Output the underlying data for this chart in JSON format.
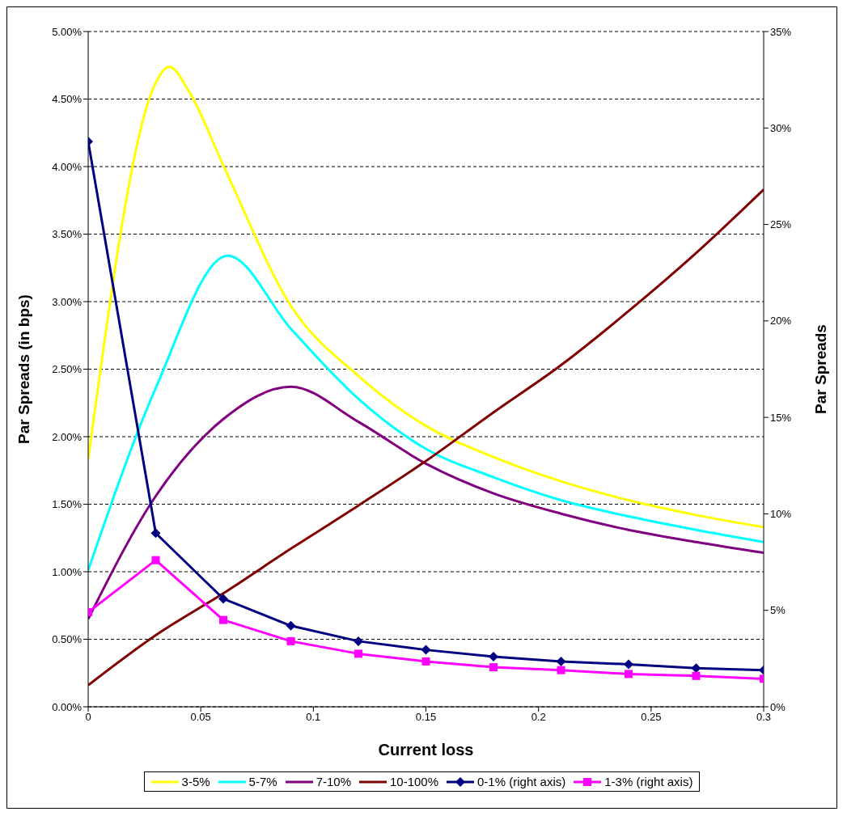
{
  "chart_data": {
    "type": "line",
    "xlabel": "Current loss",
    "ylabel": "Par Spreads (in bps)",
    "y2label": "Par Spreads",
    "xlim": [
      0,
      0.3
    ],
    "xticks": [
      0,
      0.05,
      0.1,
      0.15,
      0.2,
      0.25,
      0.3
    ],
    "ylim": [
      0,
      5
    ],
    "yticks": [
      {
        "value": 0,
        "label": "0.00%"
      },
      {
        "value": 0.5,
        "label": "0.50%"
      },
      {
        "value": 1,
        "label": "1.00%"
      },
      {
        "value": 1.5,
        "label": "1.50%"
      },
      {
        "value": 2,
        "label": "2.00%"
      },
      {
        "value": 2.5,
        "label": "2.50%"
      },
      {
        "value": 3,
        "label": "3.00%"
      },
      {
        "value": 3.5,
        "label": "3.50%"
      },
      {
        "value": 4,
        "label": "4.00%"
      },
      {
        "value": 4.5,
        "label": "4.50%"
      },
      {
        "value": 5,
        "label": "5.00%"
      }
    ],
    "y2lim": [
      0,
      35
    ],
    "y2ticks": [
      {
        "value": 0,
        "label": "0%"
      },
      {
        "value": 5,
        "label": "5%"
      },
      {
        "value": 10,
        "label": "10%"
      },
      {
        "value": 15,
        "label": "15%"
      },
      {
        "value": 20,
        "label": "20%"
      },
      {
        "value": 25,
        "label": "25%"
      },
      {
        "value": 30,
        "label": "30%"
      },
      {
        "value": 35,
        "label": "35%"
      }
    ],
    "grid": "y",
    "legend": "bottom",
    "marker": "none",
    "line_style": "solid",
    "series": [
      {
        "name": "3-5%",
        "color": "#ffff00",
        "x": [
          0,
          0.03,
          0.036,
          0.045,
          0.06,
          0.09,
          0.12,
          0.15,
          0.18,
          0.21,
          0.24,
          0.27,
          0.3
        ],
        "values": [
          1.83,
          4.62,
          4.74,
          4.55,
          4.01,
          2.97,
          2.45,
          2.08,
          1.85,
          1.67,
          1.53,
          1.42,
          1.33
        ]
      },
      {
        "name": "5-7%",
        "color": "#00ffff",
        "x": [
          0,
          0.03,
          0.062,
          0.09,
          0.12,
          0.15,
          0.18,
          0.21,
          0.24,
          0.27,
          0.3
        ],
        "values": [
          1.01,
          2.36,
          3.34,
          2.8,
          2.28,
          1.91,
          1.7,
          1.53,
          1.41,
          1.31,
          1.22
        ]
      },
      {
        "name": "7-10%",
        "color": "#800080",
        "x": [
          0,
          0.03,
          0.06,
          0.09,
          0.12,
          0.15,
          0.18,
          0.21,
          0.24,
          0.27,
          0.3
        ],
        "values": [
          0.65,
          1.56,
          2.13,
          2.37,
          2.11,
          1.8,
          1.58,
          1.43,
          1.31,
          1.22,
          1.14
        ]
      },
      {
        "name": "10-100%",
        "color": "#800000",
        "x": [
          0,
          0.03,
          0.06,
          0.09,
          0.12,
          0.15,
          0.18,
          0.21,
          0.24,
          0.27,
          0.3
        ],
        "values": [
          0.16,
          0.53,
          0.84,
          1.17,
          1.49,
          1.82,
          2.18,
          2.53,
          2.93,
          3.36,
          3.83
        ]
      },
      {
        "name": "0-1% (right axis)",
        "color": "#000080",
        "axis": "y2",
        "marker": "diamond",
        "x": [
          0,
          0.03,
          0.06,
          0.09,
          0.12,
          0.15,
          0.18,
          0.21,
          0.24,
          0.27,
          0.3
        ],
        "values": [
          29.3,
          9,
          5.6,
          4.2,
          3.4,
          2.95,
          2.6,
          2.35,
          2.2,
          2,
          1.9
        ]
      },
      {
        "name": "1-3% (right axis)",
        "color": "#ff00ff",
        "axis": "y2",
        "marker": "square",
        "x": [
          0,
          0.03,
          0.06,
          0.09,
          0.12,
          0.15,
          0.18,
          0.21,
          0.24,
          0.27,
          0.3
        ],
        "values": [
          4.9,
          7.6,
          4.5,
          3.4,
          2.75,
          2.35,
          2.05,
          1.9,
          1.7,
          1.6,
          1.45
        ]
      }
    ]
  }
}
